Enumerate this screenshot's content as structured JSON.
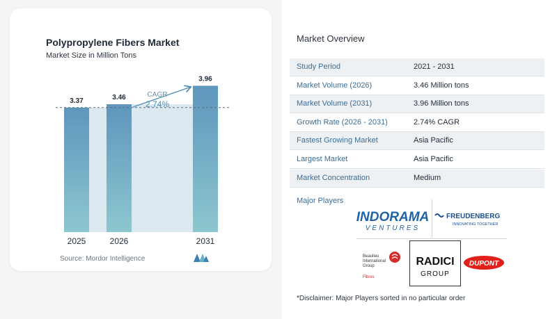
{
  "chart_data": {
    "type": "bar",
    "title": "Polypropylene Fibers Market",
    "subtitle": "Market Size in Million Tons",
    "categories": [
      "2025",
      "2026",
      "2031"
    ],
    "values": [
      3.37,
      3.46,
      3.96
    ],
    "value_labels": [
      "3.37",
      "3.46",
      "3.96"
    ],
    "cagr_label": "CAGR",
    "cagr_value": "2.74%",
    "ylim": [
      0,
      4.4
    ],
    "grid": false,
    "bar_color": "#5e96bd",
    "bar_color_bottom": "#8cc7cf",
    "band_color": "#dbe8f0",
    "accent_color": "#4a8ab3"
  },
  "source": {
    "text": "Source:  Mordor Intelligence",
    "logo_icon": "mordor-intelligence-logo"
  },
  "overview": {
    "title": "Market Overview",
    "rows": [
      {
        "label": "Study Period",
        "value": "2021 - 2031"
      },
      {
        "label": "Market Volume (2026)",
        "value": "3.46 Million tons"
      },
      {
        "label": "Market Volume (2031)",
        "value": "3.96 Million tons"
      },
      {
        "label": "Growth Rate (2026 - 2031)",
        "value": "2.74% CAGR"
      },
      {
        "label": "Fastest Growing Market",
        "value": "Asia Pacific"
      },
      {
        "label": "Largest Market",
        "value": "Asia Pacific"
      },
      {
        "label": "Market Concentration",
        "value": "Medium"
      }
    ]
  },
  "players": {
    "title": "Major Players",
    "logos": {
      "indorama": {
        "line1": "INDORAMA",
        "line2": "VENTURES"
      },
      "freudenberg": {
        "line1": "FREUDENBERG",
        "line2": "INNOVATING TOGETHER"
      },
      "beaulieu": {
        "line1": "Beaulieu",
        "line2": "International",
        "line3": "Group",
        "line4": "Fibres"
      },
      "radici": {
        "line1": "RADICI",
        "line2": "GROUP"
      },
      "dupont": {
        "line1": "DUPONT"
      }
    }
  },
  "disclaimer": "*Disclaimer: Major Players sorted in no particular order"
}
